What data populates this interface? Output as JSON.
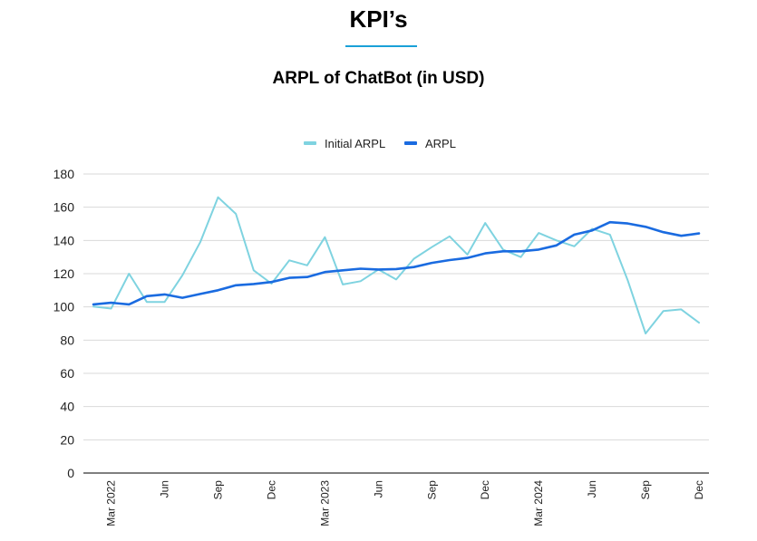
{
  "header": {
    "title": "KPI’s"
  },
  "chart_data": {
    "type": "line",
    "title": "ARPL of ChatBot (in USD)",
    "xlabel": "",
    "ylabel": "",
    "ylim": [
      0,
      180
    ],
    "yticks": [
      0,
      20,
      40,
      60,
      80,
      100,
      120,
      140,
      160,
      180
    ],
    "legend_position": "top-center",
    "grid": "horizontal",
    "x": [
      "2022-02",
      "2022-03",
      "2022-04",
      "2022-05",
      "2022-06",
      "2022-07",
      "2022-08",
      "2022-09",
      "2022-10",
      "2022-11",
      "2022-12",
      "2023-01",
      "2023-02",
      "2023-03",
      "2023-04",
      "2023-05",
      "2023-06",
      "2023-07",
      "2023-08",
      "2023-09",
      "2023-10",
      "2023-11",
      "2023-12",
      "2024-01",
      "2024-02",
      "2024-03",
      "2024-04",
      "2024-05",
      "2024-06",
      "2024-07",
      "2024-08",
      "2024-09",
      "2024-10",
      "2024-11",
      "2024-12"
    ],
    "x_tick_labels": [
      {
        "month": "2022-03",
        "label": "Mar 2022"
      },
      {
        "month": "2022-06",
        "label": "Jun"
      },
      {
        "month": "2022-09",
        "label": "Sep"
      },
      {
        "month": "2022-12",
        "label": "Dec"
      },
      {
        "month": "2023-03",
        "label": "Mar 2023"
      },
      {
        "month": "2023-06",
        "label": "Jun"
      },
      {
        "month": "2023-09",
        "label": "Sep"
      },
      {
        "month": "2023-12",
        "label": "Dec"
      },
      {
        "month": "2024-03",
        "label": "Mar 2024"
      },
      {
        "month": "2024-06",
        "label": "Jun"
      },
      {
        "month": "2024-09",
        "label": "Sep"
      },
      {
        "month": "2024-12",
        "label": "Dec"
      }
    ],
    "series": [
      {
        "name": "Initial ARPL",
        "color": "#7fd3e0",
        "values": [
          100.2,
          99,
          120,
          103,
          103,
          119,
          139,
          166,
          156,
          122,
          114,
          128,
          125,
          142,
          113.5,
          115.5,
          122.5,
          116.5,
          129,
          136,
          142.5,
          131.5,
          150.5,
          134.5,
          130,
          144.5,
          140,
          136.5,
          147,
          143.5,
          116,
          84,
          97.5,
          98.5,
          90.5
        ]
      },
      {
        "name": "ARPL",
        "color": "#1a6be0",
        "values": [
          101.5,
          102.5,
          101.5,
          106.5,
          107.5,
          105.5,
          107.8,
          110,
          113,
          113.8,
          115,
          117.5,
          118,
          121,
          122,
          123,
          122.5,
          122.8,
          124,
          126.5,
          128.2,
          129.5,
          132.2,
          133.5,
          133.5,
          134.5,
          137,
          143.5,
          146,
          151,
          150.2,
          148.2,
          145,
          142.8,
          144.2
        ]
      }
    ]
  }
}
